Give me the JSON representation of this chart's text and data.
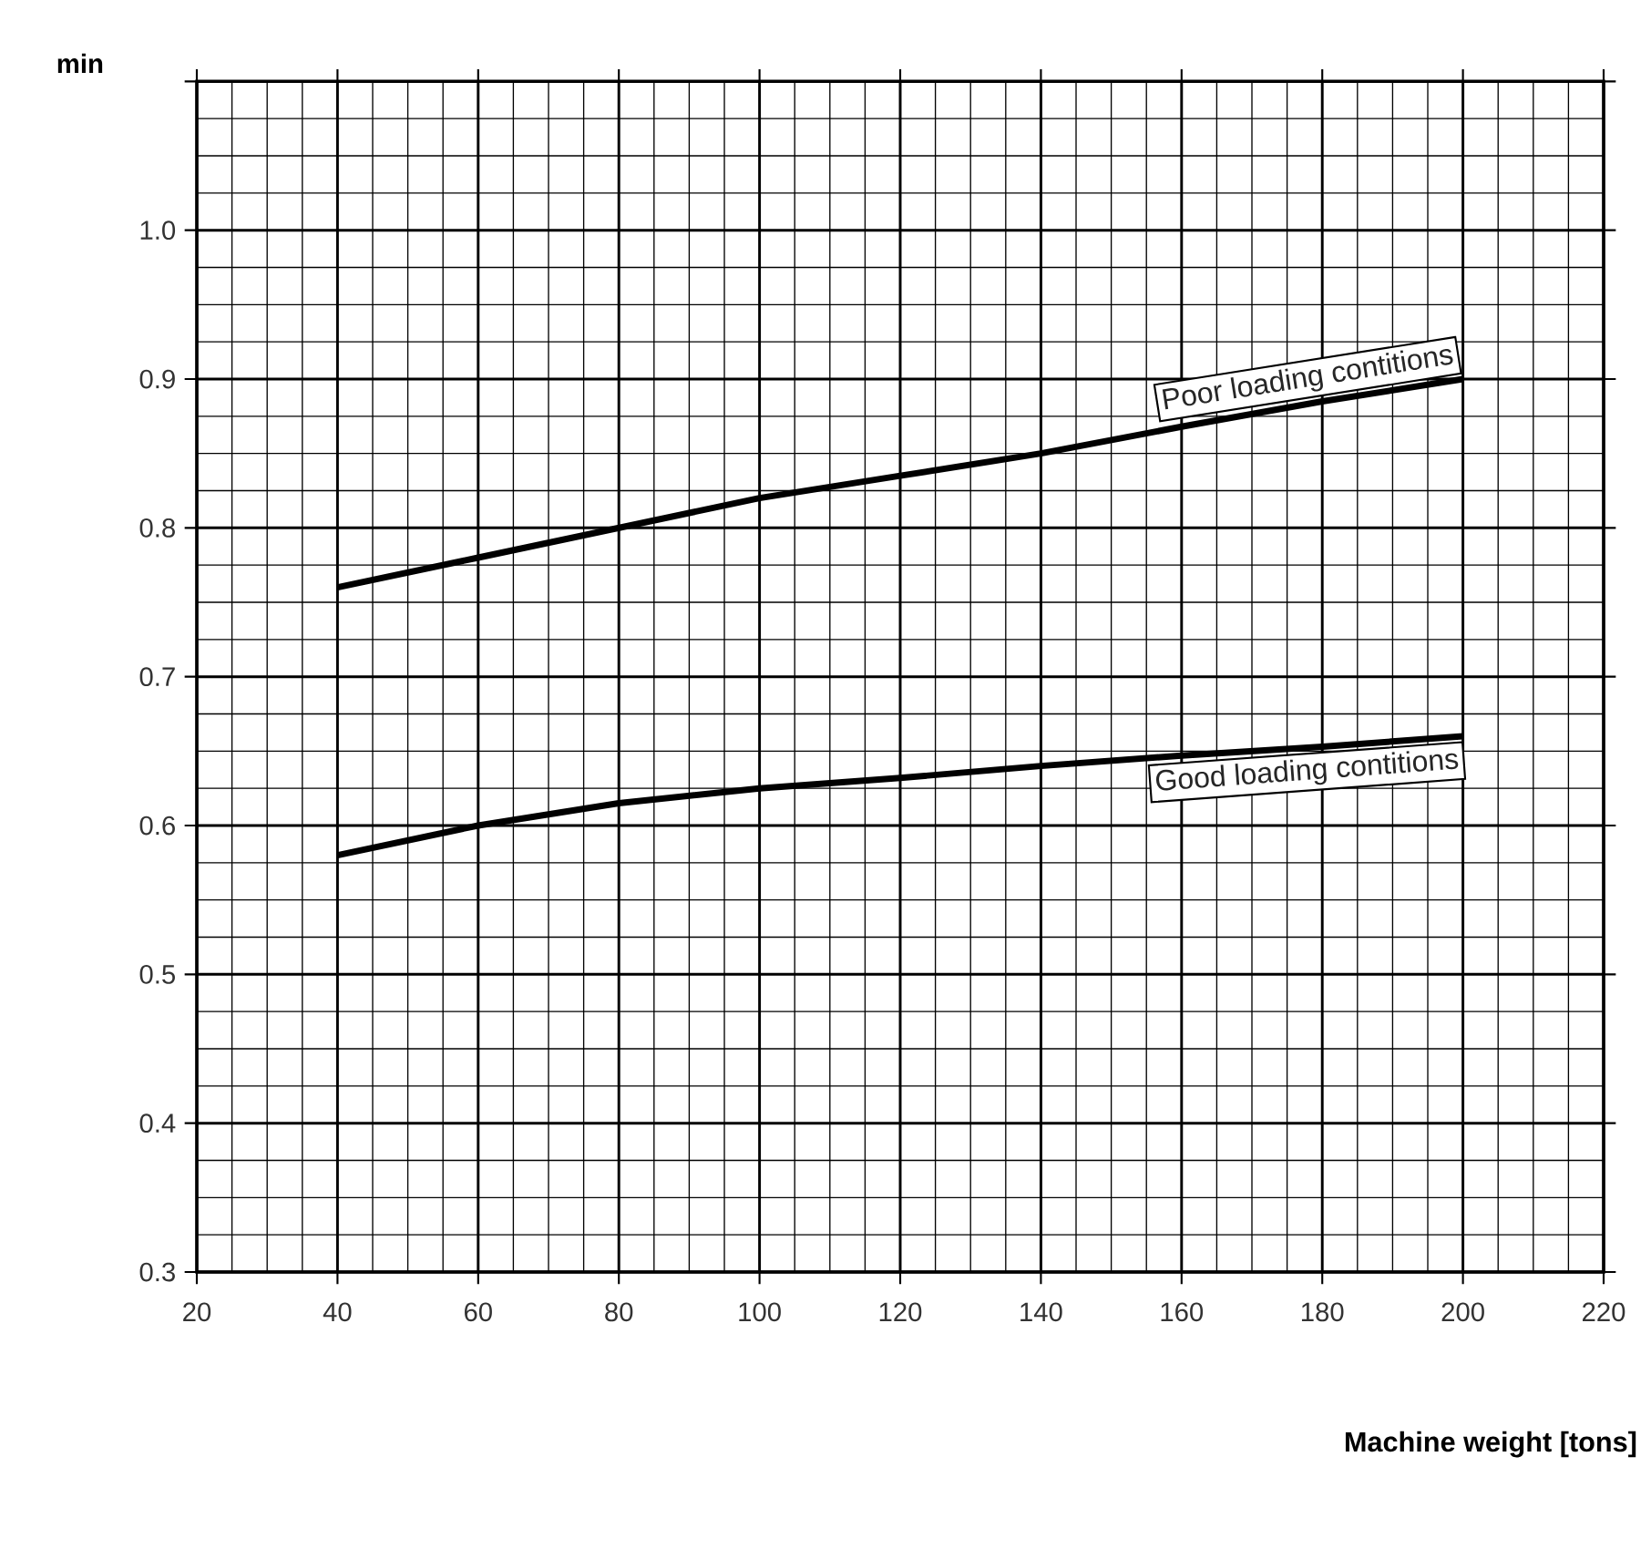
{
  "chart_data": {
    "type": "line",
    "ylabel": "min",
    "xlabel": "Machine weight [tons]",
    "xlim": [
      20,
      220
    ],
    "xticks": [
      20,
      40,
      60,
      80,
      100,
      120,
      140,
      160,
      180,
      200,
      220
    ],
    "ylim": [
      0.3,
      1.1
    ],
    "yticks": [
      0.3,
      0.4,
      0.5,
      0.6,
      0.7,
      0.8,
      0.9,
      {
        "value": 1.0,
        "label": "1.0"
      },
      {
        "value": 1.1,
        "label": null
      }
    ],
    "grid": true,
    "x": [
      40,
      60,
      80,
      100,
      120,
      140,
      160,
      180,
      200
    ],
    "series": [
      {
        "name": "Poor loading contitions",
        "color": "#000000",
        "values": [
          0.76,
          0.78,
          0.8,
          0.82,
          0.835,
          0.85,
          0.868,
          0.885,
          0.9
        ]
      },
      {
        "name": "Good loading contitions",
        "color": "#000000",
        "values": [
          0.58,
          0.6,
          0.615,
          0.625,
          0.632,
          0.64,
          0.647,
          0.653,
          0.66
        ]
      }
    ]
  }
}
